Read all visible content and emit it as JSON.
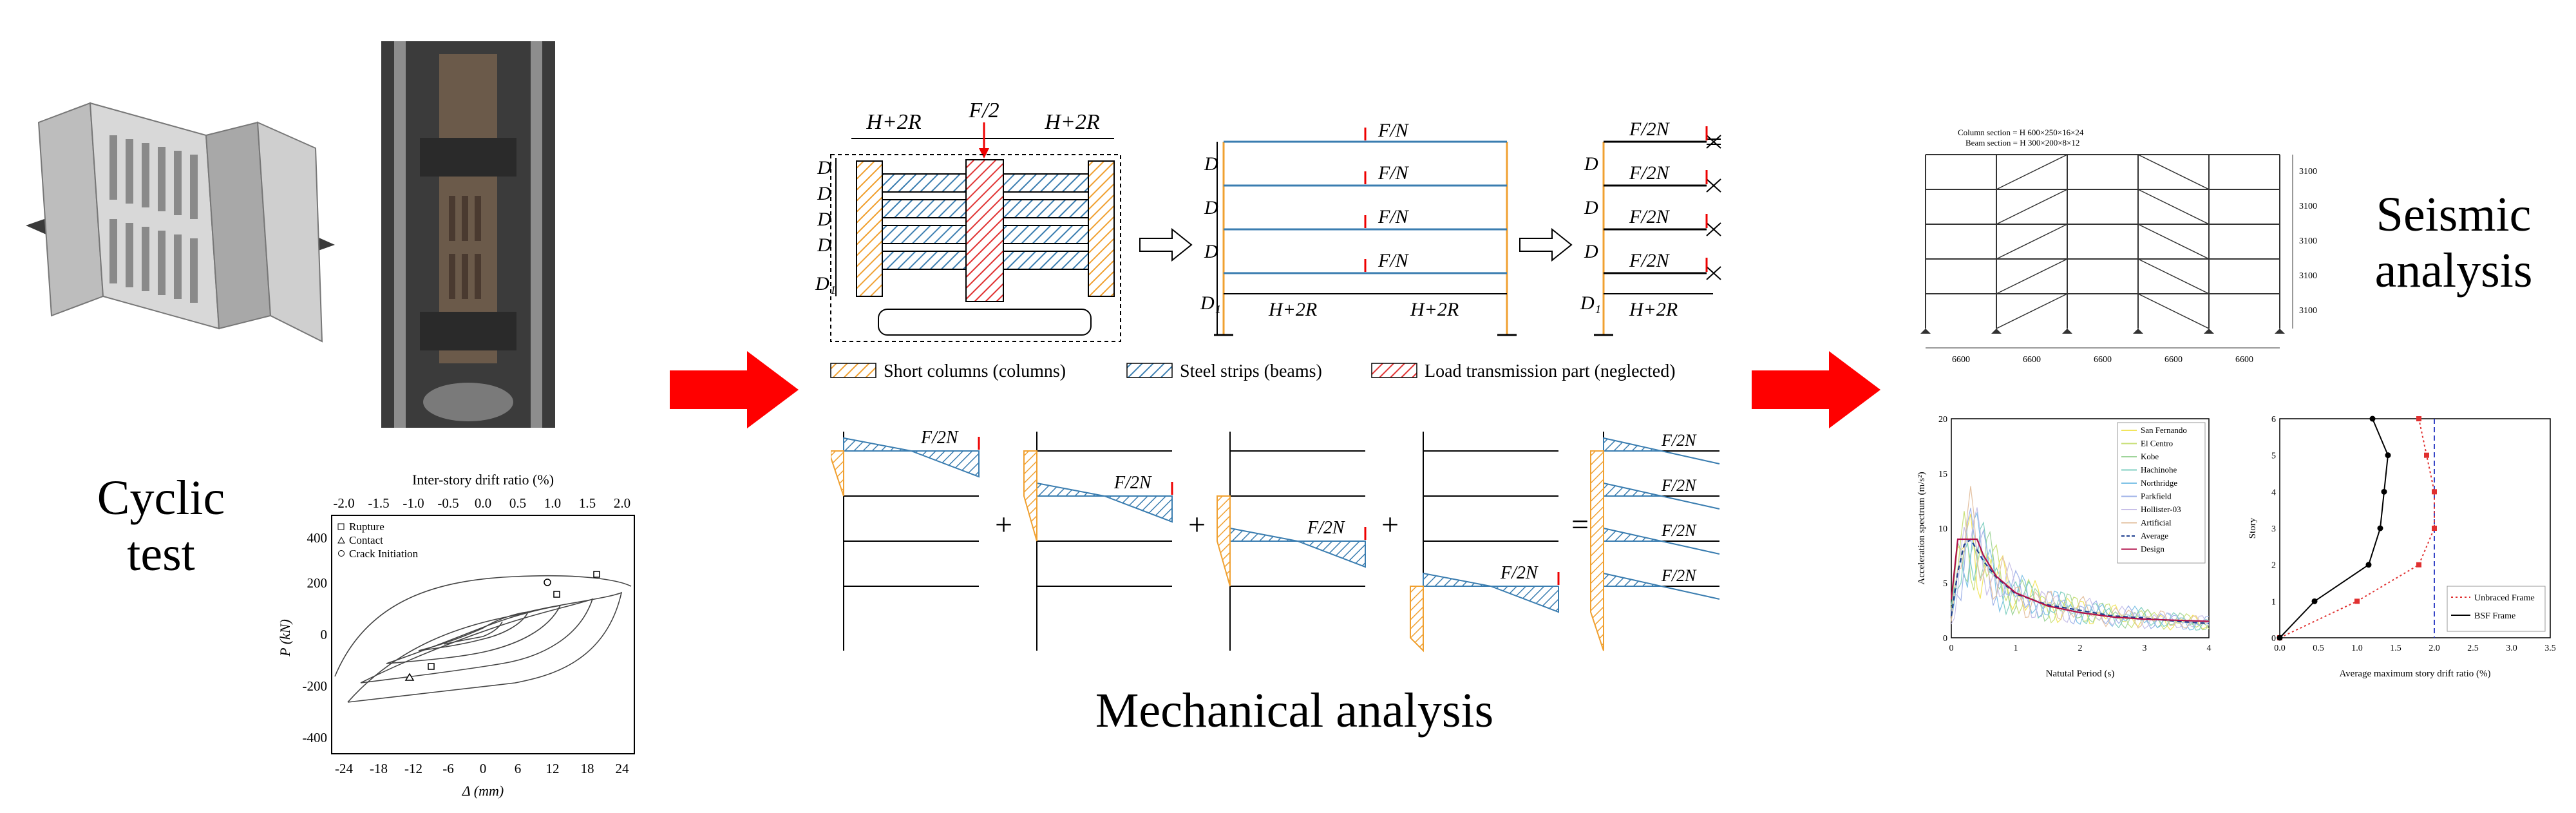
{
  "labels": {
    "cyclic_test": [
      "Cyclic",
      "test"
    ],
    "mechanical_analysis": "Mechanical analysis",
    "seismic_analysis": [
      "Seismic",
      "analysis"
    ]
  },
  "arrow_color": "#ff0000",
  "hatch_colors": {
    "columns": "#f0a030",
    "beams": "#3a7db0",
    "load": "#e03030"
  },
  "mechanical": {
    "top_left_dims": {
      "h_left": "H+2R",
      "force": "F/2",
      "h_right": "H+2R",
      "D": "D",
      "D1": "D₁"
    },
    "frame2": {
      "load": "F/N",
      "D": "D",
      "D1": "D₁",
      "span_left": "H+2R",
      "span_right": "H+2R"
    },
    "frame3": {
      "load": "F/2N",
      "D": "D",
      "D1": "D₁",
      "span": "H+2R"
    },
    "legend": {
      "columns": "Short columns (columns)",
      "beams": "Steel strips (beams)",
      "load": "Load transmission part (neglected)"
    },
    "bottom_load": "F/2N",
    "plus": "+",
    "equals": "="
  },
  "hysteresis": {
    "top_axis_title": "Inter-story drift ratio (%)",
    "top_ticks": [
      "-2.0",
      "-1.5",
      "-1.0",
      "-0.5",
      "0.0",
      "0.5",
      "1.0",
      "1.5",
      "2.0"
    ],
    "y_title": "P (kN)",
    "y_ticks": [
      "400",
      "200",
      "0",
      "-200",
      "-400"
    ],
    "x_title": "Δ (mm)",
    "x_ticks": [
      "-24",
      "-18",
      "-12",
      "-6",
      "0",
      "6",
      "12",
      "18",
      "24"
    ],
    "legend": [
      "Rupture",
      "Contact",
      "Crack Initiation"
    ]
  },
  "frame_elev": {
    "note1": "Column section = H 600×250×16×24",
    "note2": "Beam section = H 300×200×8×12",
    "story_heights": [
      "3100",
      "3100",
      "3100",
      "3100",
      "3100"
    ],
    "bay_widths": [
      "6600",
      "6600",
      "6600",
      "6600",
      "6600"
    ]
  },
  "chart_data": [
    {
      "type": "line",
      "xlabel": "Natutal Period (s)",
      "ylabel": "Acceleration spectrum (m/s²)",
      "xlim": [
        0,
        4
      ],
      "ylim": [
        0,
        20
      ],
      "x_ticks": [
        "0",
        "1",
        "2",
        "3",
        "4"
      ],
      "y_ticks": [
        "0",
        "5",
        "10",
        "15",
        "20"
      ],
      "legend_position": "top-right",
      "series": [
        {
          "name": "San Fernando",
          "color": "#f2e55c"
        },
        {
          "name": "El Centro",
          "color": "#c9e07a"
        },
        {
          "name": "Kobe",
          "color": "#9fd49a"
        },
        {
          "name": "Hachinohe",
          "color": "#7fcfc0"
        },
        {
          "name": "Northridge",
          "color": "#7fc2e6"
        },
        {
          "name": "Parkfield",
          "color": "#9fb2e8"
        },
        {
          "name": "Hollister-03",
          "color": "#c8c0e8"
        },
        {
          "name": "Artificial",
          "color": "#e3c0a0"
        },
        {
          "name": "Average",
          "color": "#1f3f8f",
          "x": [
            0,
            0.1,
            0.2,
            0.3,
            0.4,
            0.5,
            0.7,
            1.0,
            1.5,
            2.0,
            2.5,
            3.0,
            3.5,
            4.0
          ],
          "values": [
            2,
            6,
            8.5,
            9,
            8,
            7,
            5.5,
            4,
            3,
            2.5,
            2,
            1.8,
            1.5,
            1.3
          ]
        },
        {
          "name": "Design",
          "color": "#b0104a",
          "x": [
            0,
            0.1,
            0.25,
            0.4,
            0.5,
            0.7,
            1.0,
            1.5,
            2.0,
            2.5,
            3.0,
            3.5,
            4.0
          ],
          "values": [
            3.5,
            9,
            9,
            9,
            7.5,
            5.6,
            4.1,
            2.9,
            2.3,
            1.9,
            1.7,
            1.6,
            1.5
          ]
        }
      ]
    },
    {
      "type": "line",
      "xlabel": "Average maximum story drift ratio (%)",
      "ylabel": "Story",
      "xlim": [
        0,
        3.5
      ],
      "ylim": [
        0,
        6
      ],
      "x_ticks": [
        "0.0",
        "0.5",
        "1.0",
        "1.5",
        "2.0",
        "2.5",
        "3.0",
        "3.5"
      ],
      "y_ticks": [
        "0",
        "1",
        "2",
        "3",
        "4",
        "5",
        "6"
      ],
      "limit_line": 2.0,
      "legend_position": "bottom-right",
      "series": [
        {
          "name": "Unbraced Frame",
          "color": "#e03030",
          "x": [
            0,
            1.0,
            1.8,
            2.0,
            2.0,
            1.9,
            1.8
          ],
          "values": [
            0,
            1,
            2,
            3,
            4,
            5,
            6
          ]
        },
        {
          "name": "BSF Frame",
          "color": "#000000",
          "x": [
            0,
            0.45,
            1.15,
            1.3,
            1.35,
            1.4,
            1.2
          ],
          "values": [
            0,
            1,
            2,
            3,
            4,
            5,
            6
          ]
        }
      ]
    }
  ]
}
